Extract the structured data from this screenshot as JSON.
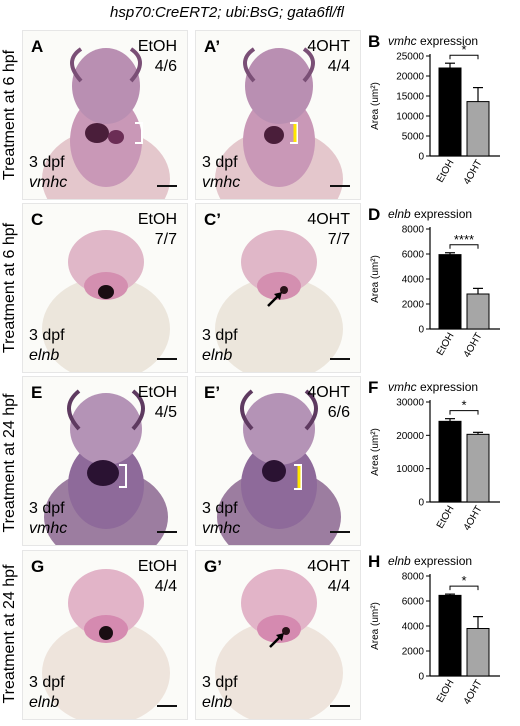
{
  "figure_title": "hsp70:CreERT2; ubi:BsG; gata6fl/fl",
  "rows": [
    {
      "label": "Treatment at 6 hpf",
      "left": {
        "letter": "A",
        "cond": "EtOH",
        "ratio": "4/6",
        "stage": "3 dpf",
        "gene": "vmhc"
      },
      "right": {
        "letter": "A’",
        "cond": "4OHT",
        "ratio": "4/4",
        "stage": "3 dpf",
        "gene": "vmhc"
      }
    },
    {
      "label": "Treatment at 6 hpf",
      "left": {
        "letter": "C",
        "cond": "EtOH",
        "ratio": "7/7",
        "stage": "3 dpf",
        "gene": "elnb"
      },
      "right": {
        "letter": "C’",
        "cond": "4OHT",
        "ratio": "7/7",
        "stage": "3 dpf",
        "gene": "elnb"
      }
    },
    {
      "label": "Treatment at 24 hpf",
      "left": {
        "letter": "E",
        "cond": "EtOH",
        "ratio": "4/5",
        "stage": "3 dpf",
        "gene": "vmhc"
      },
      "right": {
        "letter": "E’",
        "cond": "4OHT",
        "ratio": "6/6",
        "stage": "3 dpf",
        "gene": "vmhc"
      }
    },
    {
      "label": "Treatment at 24 hpf",
      "left": {
        "letter": "G",
        "cond": "EtOH",
        "ratio": "4/4",
        "stage": "3 dpf",
        "gene": "elnb"
      },
      "right": {
        "letter": "G’",
        "cond": "4OHT",
        "ratio": "4/4",
        "stage": "3 dpf",
        "gene": "elnb"
      }
    }
  ],
  "chart_data": [
    {
      "letter": "B",
      "type": "bar",
      "title_gene": "vmhc",
      "title_rest": " expression",
      "ylabel": "Area (um²)",
      "categories": [
        "EtOH",
        "4OHT"
      ],
      "values": [
        22000,
        13600
      ],
      "errors": [
        1200,
        3500
      ],
      "ylim": [
        0,
        25000
      ],
      "yticks": [
        0,
        5000,
        10000,
        15000,
        20000,
        25000
      ],
      "significance": "*",
      "colors": [
        "#000000",
        "#a6a6a6"
      ]
    },
    {
      "letter": "D",
      "type": "bar",
      "title_gene": "elnb",
      "title_rest": " expression",
      "ylabel": "Area (um²)",
      "categories": [
        "EtOH",
        "4OHT"
      ],
      "values": [
        5950,
        2800
      ],
      "errors": [
        150,
        450
      ],
      "ylim": [
        0,
        8000
      ],
      "yticks": [
        0,
        2000,
        4000,
        6000,
        8000
      ],
      "significance": "****",
      "colors": [
        "#000000",
        "#a6a6a6"
      ]
    },
    {
      "letter": "F",
      "type": "bar",
      "title_gene": "vmhc",
      "title_rest": " expression",
      "ylabel": "Area (um²)",
      "categories": [
        "EtOH",
        "4OHT"
      ],
      "values": [
        24200,
        20300
      ],
      "errors": [
        800,
        600
      ],
      "ylim": [
        0,
        30000
      ],
      "yticks": [
        0,
        10000,
        20000,
        30000
      ],
      "significance": "*",
      "colors": [
        "#000000",
        "#a6a6a6"
      ]
    },
    {
      "letter": "H",
      "type": "bar",
      "title_gene": "elnb",
      "title_rest": " expression",
      "ylabel": "Area (um²)",
      "categories": [
        "EtOH",
        "4OHT"
      ],
      "values": [
        6450,
        3800
      ],
      "errors": [
        100,
        950
      ],
      "ylim": [
        0,
        8000
      ],
      "yticks": [
        0,
        2000,
        4000,
        6000,
        8000
      ],
      "significance": "*",
      "colors": [
        "#000000",
        "#a6a6a6"
      ]
    }
  ]
}
